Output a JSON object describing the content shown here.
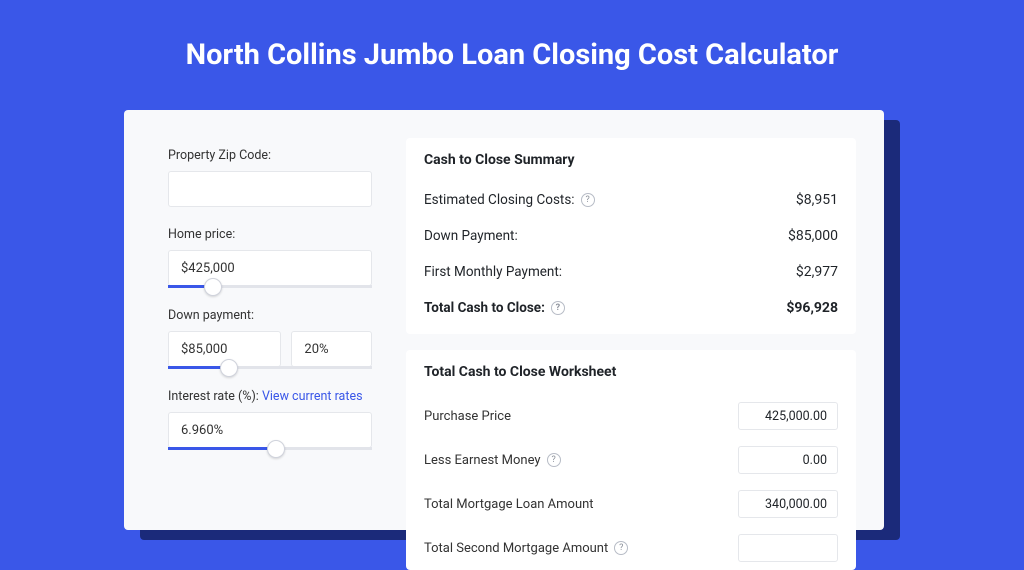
{
  "page_title": "North Collins Jumbo Loan Closing Cost Calculator",
  "colors": {
    "page_bg": "#3a57e8",
    "card_bg": "#f8f9fb",
    "shadow": "#1b2a7a",
    "input_border": "#e5e7eb",
    "slider_track": "#e2e4ea",
    "slider_fill": "#3a57e8",
    "link": "#3a57e8"
  },
  "left": {
    "zip_label": "Property Zip Code:",
    "zip_value": "",
    "home_price_label": "Home price:",
    "home_price_value": "$425,000",
    "home_price_slider": {
      "fill_pct": 22,
      "thumb_pct": 22
    },
    "down_payment_label": "Down payment:",
    "down_payment_value": "$85,000",
    "down_payment_pct": "20%",
    "down_payment_slider": {
      "fill_pct": 30,
      "thumb_pct": 30
    },
    "rate_label_prefix": "Interest rate (%): ",
    "rate_link_text": "View current rates",
    "rate_value": "6.960%",
    "rate_slider": {
      "fill_pct": 53,
      "thumb_pct": 53
    }
  },
  "summary": {
    "title": "Cash to Close Summary",
    "rows": [
      {
        "key": "Estimated Closing Costs:",
        "help": true,
        "val": "$8,951"
      },
      {
        "key": "Down Payment:",
        "help": false,
        "val": "$85,000"
      },
      {
        "key": "First Monthly Payment:",
        "help": false,
        "val": "$2,977"
      }
    ],
    "total": {
      "key": "Total Cash to Close:",
      "help": true,
      "val": "$96,928"
    }
  },
  "worksheet": {
    "title": "Total Cash to Close Worksheet",
    "rows": [
      {
        "key": "Purchase Price",
        "help": false,
        "val": "425,000.00"
      },
      {
        "key": "Less Earnest Money",
        "help": true,
        "val": "0.00"
      },
      {
        "key": "Total Mortgage Loan Amount",
        "help": false,
        "val": "340,000.00"
      },
      {
        "key": "Total Second Mortgage Amount",
        "help": true,
        "val": ""
      }
    ]
  }
}
